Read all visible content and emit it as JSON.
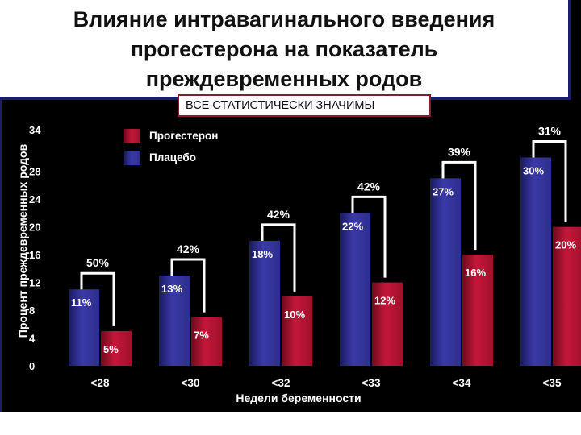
{
  "header": {
    "title": "Влияние интравагинального введения\nпрогестерона на показатель\nпреждевременных родов"
  },
  "note": "ВСЕ СТАТИСТИЧЕСКИ ЗНАЧИМЫ",
  "colors": {
    "placebo": "#2e2e8c",
    "progesterone": "#a0102a",
    "background": "#000000"
  },
  "chart_data": {
    "type": "bar",
    "xlabel": "Недели беременности",
    "ylabel": "Процент преждевременных родов",
    "ylim": [
      0,
      34
    ],
    "yticks": [
      "0",
      "4",
      "8",
      "12",
      "16",
      "20",
      "24",
      "28",
      "34"
    ],
    "categories": [
      "<28",
      "<30",
      "<32",
      "<33",
      "<34",
      "<35"
    ],
    "series": [
      {
        "name": "Плацебо",
        "values": [
          11,
          13,
          18,
          22,
          27,
          30
        ],
        "labels": [
          "11%",
          "13%",
          "18%",
          "22%",
          "27%",
          "30%"
        ]
      },
      {
        "name": "Прогестерон",
        "values": [
          5,
          7,
          10,
          12,
          16,
          20
        ],
        "labels": [
          "5%",
          "7%",
          "10%",
          "12%",
          "16%",
          "20%"
        ]
      }
    ],
    "reductions": [
      "50%",
      "42%",
      "42%",
      "42%",
      "39%",
      "31%"
    ],
    "legend": {
      "position": "top-left",
      "order": [
        "Прогестерон",
        "Плацебо"
      ]
    },
    "grid": false
  }
}
